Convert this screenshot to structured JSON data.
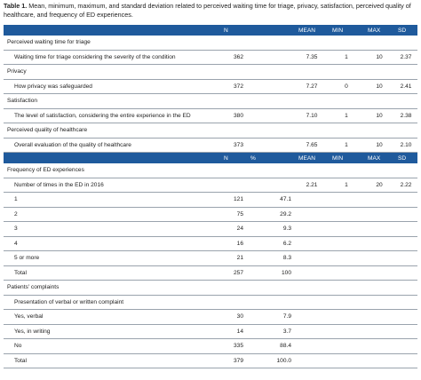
{
  "caption": {
    "label": "Table 1.",
    "text": " Mean, minimum, maximum, and standard deviation related to perceived waiting time for triage, privacy, satisfaction, perceived quality of healthcare, and frequency of ED experiences."
  },
  "header1": [
    "",
    "N",
    "",
    "MEAN",
    "MIN",
    "MAX",
    "SD"
  ],
  "group1": [
    {
      "section": "Perceived waiting time for triage",
      "label": "Waiting time for triage considering the severity of the condition",
      "n": "362",
      "mean": "7.35",
      "min": "1",
      "max": "10",
      "sd": "2.37"
    },
    {
      "section": "Privacy",
      "label": "How privacy was safeguarded",
      "n": "372",
      "mean": "7.27",
      "min": "0",
      "max": "10",
      "sd": "2.41"
    },
    {
      "section": "Satisfaction",
      "label": "The level of satisfaction, considering the entire experience in the ED",
      "n": "380",
      "mean": "7.10",
      "min": "1",
      "max": "10",
      "sd": "2.38"
    },
    {
      "section": "Perceived quality of healthcare",
      "label": "Overall evaluation of the quality of healthcare",
      "n": "373",
      "mean": "7.65",
      "min": "1",
      "max": "10",
      "sd": "2.10"
    }
  ],
  "header2": [
    "",
    "N",
    "%",
    "MEAN",
    "MIN",
    "MAX",
    "SD"
  ],
  "freq": {
    "section": "Frequency of ED experiences",
    "summary": {
      "label": "Number of times in the ED in 2016",
      "mean": "2.21",
      "min": "1",
      "max": "20",
      "sd": "2.22"
    },
    "rows": [
      {
        "label": "1",
        "n": "121",
        "pct": "47.1"
      },
      {
        "label": "2",
        "n": "75",
        "pct": "29.2"
      },
      {
        "label": "3",
        "n": "24",
        "pct": "9.3"
      },
      {
        "label": "4",
        "n": "16",
        "pct": "6.2"
      },
      {
        "label": "5 or more",
        "n": "21",
        "pct": "8.3"
      },
      {
        "label": "Total",
        "n": "257",
        "pct": "100"
      }
    ]
  },
  "complaints": {
    "section": "Patients' complaints",
    "subsection": "Presentation of verbal or written complaint",
    "rows": [
      {
        "label": "Yes, verbal",
        "n": "30",
        "pct": "7.9"
      },
      {
        "label": "Yes, in writing",
        "n": "14",
        "pct": "3.7"
      },
      {
        "label": "No",
        "n": "335",
        "pct": "88.4"
      },
      {
        "label": "Total",
        "n": "379",
        "pct": "100.0"
      }
    ]
  },
  "colors": {
    "header_bg": "#1f5a9c",
    "rule": "#9aa3ad"
  }
}
